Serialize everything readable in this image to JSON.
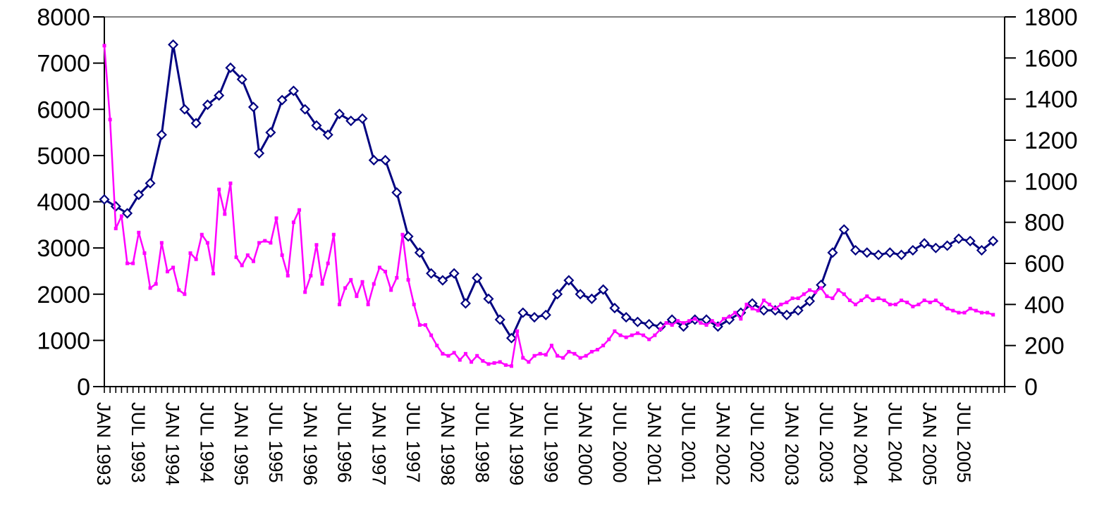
{
  "chart_data": {
    "type": "line",
    "title": "",
    "xlabel": "",
    "ylabel": "",
    "grid": false,
    "legend": "none",
    "y_left": {
      "range": [
        0,
        8000
      ],
      "ticks": [
        0,
        1000,
        2000,
        3000,
        4000,
        5000,
        6000,
        7000,
        8000
      ]
    },
    "y_right": {
      "range": [
        0,
        1800
      ],
      "ticks": [
        0,
        200,
        400,
        600,
        800,
        1000,
        1200,
        1400,
        1600,
        1800
      ]
    },
    "x_range": [
      "1993-01",
      "2006-02"
    ],
    "x_tick_labels": [
      "JAN 1993",
      "JUL 1993",
      "JAN 1994",
      "JUL 1994",
      "JAN 1995",
      "JUL 1995",
      "JAN 1996",
      "JUL 1996",
      "JAN 1997",
      "JUL 1997",
      "JAN 1998",
      "JUL 1998",
      "JAN 1999",
      "JUL 1999",
      "JAN 2000",
      "JUL 2000",
      "JAN 2001",
      "JUL 2001",
      "JAN 2002",
      "JUL 2002",
      "JAN 2003",
      "JUL 2003",
      "JAN 2004",
      "JUL 2004",
      "JAN 2005",
      "JUL 2005"
    ],
    "series": [
      {
        "axis": "left",
        "color": "#000080",
        "marker": "diamond",
        "points": [
          [
            "1993-01",
            4050
          ],
          [
            "1993-03",
            3900
          ],
          [
            "1993-05",
            3750
          ],
          [
            "1993-07",
            4150
          ],
          [
            "1993-09",
            4400
          ],
          [
            "1993-11",
            5450
          ],
          [
            "1994-01",
            7400
          ],
          [
            "1994-03",
            6000
          ],
          [
            "1994-05",
            5700
          ],
          [
            "1994-07",
            6100
          ],
          [
            "1994-09",
            6300
          ],
          [
            "1994-11",
            6900
          ],
          [
            "1995-01",
            6650
          ],
          [
            "1995-03",
            6050
          ],
          [
            "1995-04",
            5050
          ],
          [
            "1995-06",
            5500
          ],
          [
            "1995-08",
            6200
          ],
          [
            "1995-10",
            6400
          ],
          [
            "1995-12",
            6000
          ],
          [
            "1996-02",
            5650
          ],
          [
            "1996-04",
            5450
          ],
          [
            "1996-06",
            5900
          ],
          [
            "1996-08",
            5750
          ],
          [
            "1996-10",
            5800
          ],
          [
            "1996-12",
            4900
          ],
          [
            "1997-02",
            4900
          ],
          [
            "1997-04",
            4200
          ],
          [
            "1997-06",
            3250
          ],
          [
            "1997-08",
            2900
          ],
          [
            "1997-10",
            2450
          ],
          [
            "1997-12",
            2300
          ],
          [
            "1998-02",
            2450
          ],
          [
            "1998-04",
            1800
          ],
          [
            "1998-06",
            2350
          ],
          [
            "1998-08",
            1900
          ],
          [
            "1998-10",
            1450
          ],
          [
            "1998-12",
            1050
          ],
          [
            "1999-02",
            1600
          ],
          [
            "1999-04",
            1500
          ],
          [
            "1999-06",
            1550
          ],
          [
            "1999-08",
            2000
          ],
          [
            "1999-10",
            2300
          ],
          [
            "1999-12",
            2000
          ],
          [
            "2000-02",
            1900
          ],
          [
            "2000-04",
            2100
          ],
          [
            "2000-06",
            1700
          ],
          [
            "2000-08",
            1500
          ],
          [
            "2000-10",
            1400
          ],
          [
            "2000-12",
            1350
          ],
          [
            "2001-02",
            1300
          ],
          [
            "2001-04",
            1450
          ],
          [
            "2001-06",
            1300
          ],
          [
            "2001-08",
            1450
          ],
          [
            "2001-10",
            1450
          ],
          [
            "2001-12",
            1300
          ],
          [
            "2002-02",
            1450
          ],
          [
            "2002-04",
            1600
          ],
          [
            "2002-06",
            1800
          ],
          [
            "2002-08",
            1650
          ],
          [
            "2002-10",
            1650
          ],
          [
            "2002-12",
            1550
          ],
          [
            "2003-02",
            1650
          ],
          [
            "2003-04",
            1850
          ],
          [
            "2003-06",
            2200
          ],
          [
            "2003-08",
            2900
          ],
          [
            "2003-10",
            3400
          ],
          [
            "2003-12",
            2950
          ],
          [
            "2004-02",
            2900
          ],
          [
            "2004-04",
            2850
          ],
          [
            "2004-06",
            2900
          ],
          [
            "2004-08",
            2850
          ],
          [
            "2004-10",
            2950
          ],
          [
            "2004-12",
            3100
          ],
          [
            "2005-02",
            3000
          ],
          [
            "2005-04",
            3050
          ],
          [
            "2005-06",
            3200
          ],
          [
            "2005-08",
            3150
          ],
          [
            "2005-10",
            2950
          ],
          [
            "2005-12",
            3150
          ]
        ]
      },
      {
        "axis": "right",
        "color": "#ff00ff",
        "marker": "square",
        "points": [
          [
            "1993-01",
            1660
          ],
          [
            "1993-02",
            1300
          ],
          [
            "1993-03",
            770
          ],
          [
            "1993-04",
            830
          ],
          [
            "1993-05",
            600
          ],
          [
            "1993-06",
            600
          ],
          [
            "1993-07",
            750
          ],
          [
            "1993-08",
            650
          ],
          [
            "1993-09",
            480
          ],
          [
            "1993-10",
            500
          ],
          [
            "1993-11",
            700
          ],
          [
            "1993-12",
            560
          ],
          [
            "1994-01",
            580
          ],
          [
            "1994-02",
            470
          ],
          [
            "1994-03",
            450
          ],
          [
            "1994-04",
            650
          ],
          [
            "1994-05",
            620
          ],
          [
            "1994-06",
            740
          ],
          [
            "1994-07",
            700
          ],
          [
            "1994-08",
            550
          ],
          [
            "1994-09",
            960
          ],
          [
            "1994-10",
            840
          ],
          [
            "1994-11",
            990
          ],
          [
            "1994-12",
            630
          ],
          [
            "1995-01",
            590
          ],
          [
            "1995-02",
            640
          ],
          [
            "1995-03",
            610
          ],
          [
            "1995-04",
            700
          ],
          [
            "1995-05",
            710
          ],
          [
            "1995-06",
            700
          ],
          [
            "1995-07",
            820
          ],
          [
            "1995-08",
            640
          ],
          [
            "1995-09",
            540
          ],
          [
            "1995-10",
            800
          ],
          [
            "1995-11",
            860
          ],
          [
            "1995-12",
            460
          ],
          [
            "1996-01",
            540
          ],
          [
            "1996-02",
            690
          ],
          [
            "1996-03",
            500
          ],
          [
            "1996-04",
            600
          ],
          [
            "1996-05",
            740
          ],
          [
            "1996-06",
            400
          ],
          [
            "1996-07",
            480
          ],
          [
            "1996-08",
            520
          ],
          [
            "1996-09",
            440
          ],
          [
            "1996-10",
            510
          ],
          [
            "1996-11",
            400
          ],
          [
            "1996-12",
            500
          ],
          [
            "1997-01",
            580
          ],
          [
            "1997-02",
            560
          ],
          [
            "1997-03",
            470
          ],
          [
            "1997-04",
            530
          ],
          [
            "1997-05",
            740
          ],
          [
            "1997-06",
            520
          ],
          [
            "1997-07",
            400
          ],
          [
            "1997-08",
            300
          ],
          [
            "1997-09",
            300
          ],
          [
            "1997-10",
            250
          ],
          [
            "1997-11",
            200
          ],
          [
            "1997-12",
            160
          ],
          [
            "1998-01",
            150
          ],
          [
            "1998-02",
            165
          ],
          [
            "1998-03",
            130
          ],
          [
            "1998-04",
            160
          ],
          [
            "1998-05",
            120
          ],
          [
            "1998-06",
            150
          ],
          [
            "1998-07",
            125
          ],
          [
            "1998-08",
            110
          ],
          [
            "1998-09",
            115
          ],
          [
            "1998-10",
            120
          ],
          [
            "1998-11",
            105
          ],
          [
            "1998-12",
            100
          ],
          [
            "1999-01",
            270
          ],
          [
            "1999-02",
            140
          ],
          [
            "1999-03",
            120
          ],
          [
            "1999-04",
            150
          ],
          [
            "1999-05",
            160
          ],
          [
            "1999-06",
            155
          ],
          [
            "1999-07",
            200
          ],
          [
            "1999-08",
            150
          ],
          [
            "1999-09",
            140
          ],
          [
            "1999-10",
            170
          ],
          [
            "1999-11",
            160
          ],
          [
            "1999-12",
            140
          ],
          [
            "2000-01",
            150
          ],
          [
            "2000-02",
            170
          ],
          [
            "2000-03",
            180
          ],
          [
            "2000-04",
            200
          ],
          [
            "2000-05",
            230
          ],
          [
            "2000-06",
            270
          ],
          [
            "2000-07",
            250
          ],
          [
            "2000-08",
            240
          ],
          [
            "2000-09",
            250
          ],
          [
            "2000-10",
            260
          ],
          [
            "2000-11",
            250
          ],
          [
            "2000-12",
            230
          ],
          [
            "2001-01",
            250
          ],
          [
            "2001-02",
            280
          ],
          [
            "2001-03",
            310
          ],
          [
            "2001-04",
            300
          ],
          [
            "2001-05",
            320
          ],
          [
            "2001-06",
            310
          ],
          [
            "2001-07",
            320
          ],
          [
            "2001-08",
            330
          ],
          [
            "2001-09",
            310
          ],
          [
            "2001-10",
            300
          ],
          [
            "2001-11",
            320
          ],
          [
            "2001-12",
            300
          ],
          [
            "2002-01",
            330
          ],
          [
            "2002-02",
            340
          ],
          [
            "2002-03",
            360
          ],
          [
            "2002-04",
            330
          ],
          [
            "2002-05",
            400
          ],
          [
            "2002-06",
            380
          ],
          [
            "2002-07",
            370
          ],
          [
            "2002-08",
            420
          ],
          [
            "2002-09",
            400
          ],
          [
            "2002-10",
            380
          ],
          [
            "2002-11",
            400
          ],
          [
            "2002-12",
            410
          ],
          [
            "2003-01",
            430
          ],
          [
            "2003-02",
            430
          ],
          [
            "2003-03",
            450
          ],
          [
            "2003-04",
            470
          ],
          [
            "2003-05",
            460
          ],
          [
            "2003-06",
            480
          ],
          [
            "2003-07",
            440
          ],
          [
            "2003-08",
            430
          ],
          [
            "2003-09",
            470
          ],
          [
            "2003-10",
            450
          ],
          [
            "2003-11",
            420
          ],
          [
            "2003-12",
            400
          ],
          [
            "2004-01",
            420
          ],
          [
            "2004-02",
            440
          ],
          [
            "2004-03",
            420
          ],
          [
            "2004-04",
            430
          ],
          [
            "2004-05",
            420
          ],
          [
            "2004-06",
            400
          ],
          [
            "2004-07",
            400
          ],
          [
            "2004-08",
            420
          ],
          [
            "2004-09",
            410
          ],
          [
            "2004-10",
            390
          ],
          [
            "2004-11",
            400
          ],
          [
            "2004-12",
            420
          ],
          [
            "2005-01",
            410
          ],
          [
            "2005-02",
            420
          ],
          [
            "2005-03",
            400
          ],
          [
            "2005-04",
            380
          ],
          [
            "2005-05",
            370
          ],
          [
            "2005-06",
            360
          ],
          [
            "2005-07",
            360
          ],
          [
            "2005-08",
            380
          ],
          [
            "2005-09",
            370
          ],
          [
            "2005-10",
            360
          ],
          [
            "2005-11",
            360
          ],
          [
            "2005-12",
            350
          ]
        ]
      }
    ]
  }
}
